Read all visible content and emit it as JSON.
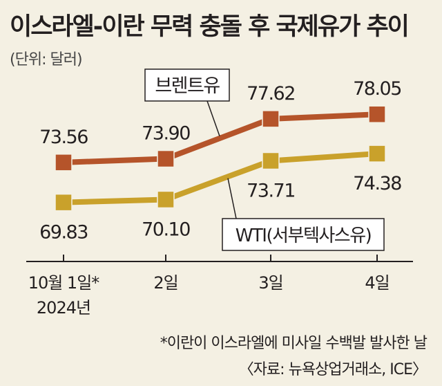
{
  "title": "이스라엘-이란 무력 충돌 후 국제유가 추이",
  "unit": "(단위: 달러)",
  "footnote": "*이란이 이스라엘에 미사일 수백발 발사한 날",
  "source": "〈자료: 뉴욕상업거래소, ICE〉",
  "colors": {
    "brent": "#b5542a",
    "wti": "#c9a12b",
    "background": "#f4f0e3",
    "text": "#231f20"
  },
  "chart_data": {
    "type": "line",
    "categories": [
      "10월 1일*",
      "2일",
      "3일",
      "4일"
    ],
    "category_sublabels": [
      "2024년",
      "",
      "",
      ""
    ],
    "series": [
      {
        "name": "브렌트유",
        "values": [
          73.56,
          73.9,
          77.62,
          78.05
        ],
        "labels": [
          "73.56",
          "73.90",
          "77.62",
          "78.05"
        ],
        "color": "#b5542a"
      },
      {
        "name": "WTI(서부텍사스유)",
        "values": [
          69.83,
          70.1,
          73.71,
          74.38
        ],
        "labels": [
          "69.83",
          "70.10",
          "73.71",
          "74.38"
        ],
        "color": "#c9a12b"
      }
    ],
    "ylim": [
      66,
      82
    ],
    "grid": false,
    "legend": "callout labels on lines"
  }
}
